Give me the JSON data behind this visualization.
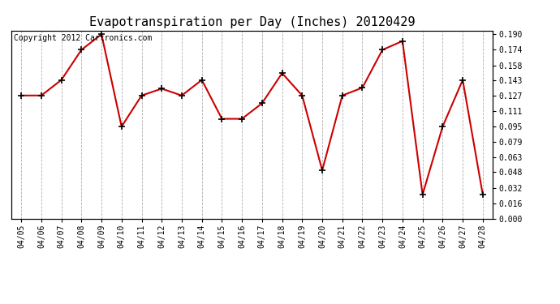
{
  "title": "Evapotranspiration per Day (Inches) 20120429",
  "copyright_text": "Copyright 2012 Cartronics.com",
  "dates": [
    "04/05",
    "04/06",
    "04/07",
    "04/08",
    "04/09",
    "04/10",
    "04/11",
    "04/12",
    "04/13",
    "04/14",
    "04/15",
    "04/16",
    "04/17",
    "04/18",
    "04/19",
    "04/20",
    "04/21",
    "04/22",
    "04/23",
    "04/24",
    "04/25",
    "04/26",
    "04/27",
    "04/28"
  ],
  "values": [
    0.127,
    0.127,
    0.143,
    0.174,
    0.19,
    0.095,
    0.127,
    0.134,
    0.127,
    0.143,
    0.103,
    0.103,
    0.119,
    0.15,
    0.127,
    0.05,
    0.127,
    0.135,
    0.174,
    0.183,
    0.025,
    0.095,
    0.143,
    0.025
  ],
  "ylim": [
    0.0,
    0.194
  ],
  "yticks": [
    0.0,
    0.016,
    0.032,
    0.048,
    0.063,
    0.079,
    0.095,
    0.111,
    0.127,
    0.143,
    0.158,
    0.174,
    0.19
  ],
  "line_color": "#cc0000",
  "bg_color": "#ffffff",
  "grid_color": "#b0b0b0",
  "title_fontsize": 11,
  "copyright_fontsize": 7,
  "tick_fontsize": 7,
  "ylabel_fontsize": 7
}
